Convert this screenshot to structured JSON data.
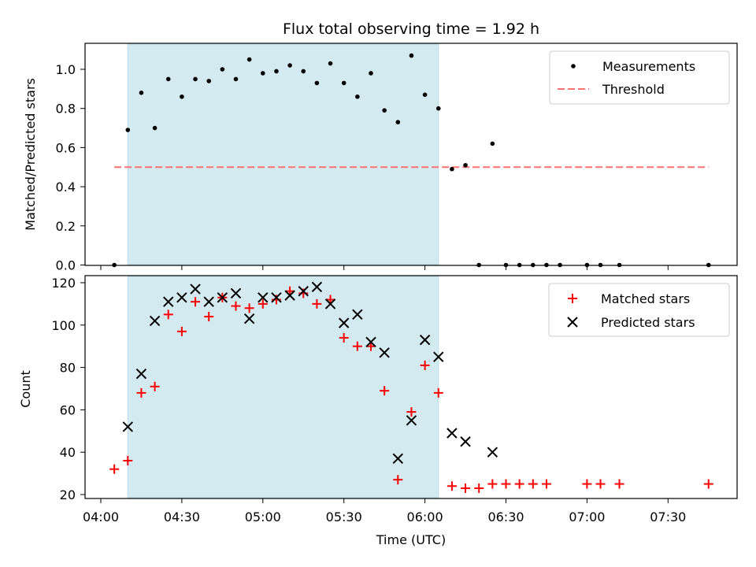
{
  "chart_data": [
    {
      "type": "scatter",
      "title": "Flux total observing time = 1.92 h",
      "xlabel": "",
      "ylabel": "Matched/Predicted stars",
      "ylim": [
        0,
        1.13
      ],
      "yticks": [
        "0.0",
        "0.2",
        "0.4",
        "0.6",
        "0.8",
        "1.0"
      ],
      "legend_position": "top-right",
      "shaded_interval": {
        "start": "04:10",
        "end": "06:05",
        "color": "#d3eaf0"
      },
      "series": [
        {
          "name": "Measurements",
          "marker": "dot",
          "color": "#000000",
          "x": [
            "04:05",
            "04:10",
            "04:15",
            "04:20",
            "04:25",
            "04:30",
            "04:35",
            "04:40",
            "04:45",
            "04:50",
            "04:55",
            "05:00",
            "05:05",
            "05:10",
            "05:15",
            "05:20",
            "05:25",
            "05:30",
            "05:35",
            "05:40",
            "05:45",
            "05:50",
            "05:55",
            "06:00",
            "06:05",
            "06:10",
            "06:15",
            "06:20",
            "06:25",
            "06:30",
            "06:35",
            "06:40",
            "06:45",
            "06:50",
            "07:00",
            "07:05",
            "07:12",
            "07:45"
          ],
          "y": [
            0.0,
            0.69,
            0.88,
            0.7,
            0.95,
            0.86,
            0.95,
            0.94,
            1.0,
            0.95,
            1.05,
            0.98,
            0.99,
            1.02,
            0.99,
            0.93,
            1.03,
            0.93,
            0.86,
            0.98,
            0.79,
            0.73,
            1.07,
            0.87,
            0.8,
            0.49,
            0.51,
            0.0,
            0.62,
            0.0,
            0.0,
            0.0,
            0.0,
            0.0,
            0.0,
            0.0,
            0.0,
            0.0
          ]
        },
        {
          "name": "Threshold",
          "style": "dashed",
          "color": "#ff7070",
          "x": [
            "04:05",
            "07:45"
          ],
          "y": [
            0.5,
            0.5
          ]
        }
      ]
    },
    {
      "type": "scatter",
      "title": "",
      "xlabel": "Time (UTC)",
      "ylabel": "Count",
      "ylim": [
        18,
        122
      ],
      "yticks": [
        "20",
        "40",
        "60",
        "80",
        "100",
        "120"
      ],
      "xticks": [
        "04:00",
        "04:30",
        "05:00",
        "05:30",
        "06:00",
        "06:30",
        "07:00",
        "07:30"
      ],
      "legend_position": "top-right",
      "shaded_interval": {
        "start": "04:10",
        "end": "06:05",
        "color": "#d3eaf0"
      },
      "series": [
        {
          "name": "Matched stars",
          "marker": "plus",
          "color": "#ff0000",
          "x": [
            "04:05",
            "04:10",
            "04:15",
            "04:20",
            "04:25",
            "04:30",
            "04:35",
            "04:40",
            "04:45",
            "04:50",
            "04:55",
            "05:00",
            "05:05",
            "05:10",
            "05:15",
            "05:20",
            "05:25",
            "05:30",
            "05:35",
            "05:40",
            "05:45",
            "05:50",
            "05:55",
            "06:00",
            "06:05",
            "06:10",
            "06:15",
            "06:20",
            "06:25",
            "06:30",
            "06:35",
            "06:40",
            "06:45",
            "07:00",
            "07:05",
            "07:12",
            "07:45"
          ],
          "y": [
            32,
            36,
            68,
            71,
            105,
            97,
            111,
            104,
            113,
            109,
            108,
            110,
            112,
            116,
            115,
            110,
            112,
            94,
            90,
            90,
            69,
            27,
            59,
            81,
            68,
            24,
            23,
            23,
            25,
            25,
            25,
            25,
            25,
            25,
            25,
            25,
            25
          ]
        },
        {
          "name": "Predicted stars",
          "marker": "x",
          "color": "#000000",
          "x": [
            "04:10",
            "04:15",
            "04:20",
            "04:25",
            "04:30",
            "04:35",
            "04:40",
            "04:45",
            "04:50",
            "04:55",
            "05:00",
            "05:05",
            "05:10",
            "05:15",
            "05:20",
            "05:25",
            "05:30",
            "05:35",
            "05:40",
            "05:45",
            "05:50",
            "05:55",
            "06:00",
            "06:05",
            "06:10",
            "06:15",
            "06:25"
          ],
          "y": [
            52,
            77,
            102,
            111,
            113,
            117,
            111,
            113,
            115,
            103,
            113,
            113,
            114,
            116,
            118,
            110,
            101,
            105,
            92,
            87,
            37,
            55,
            93,
            85,
            49,
            45,
            40
          ]
        }
      ]
    }
  ]
}
